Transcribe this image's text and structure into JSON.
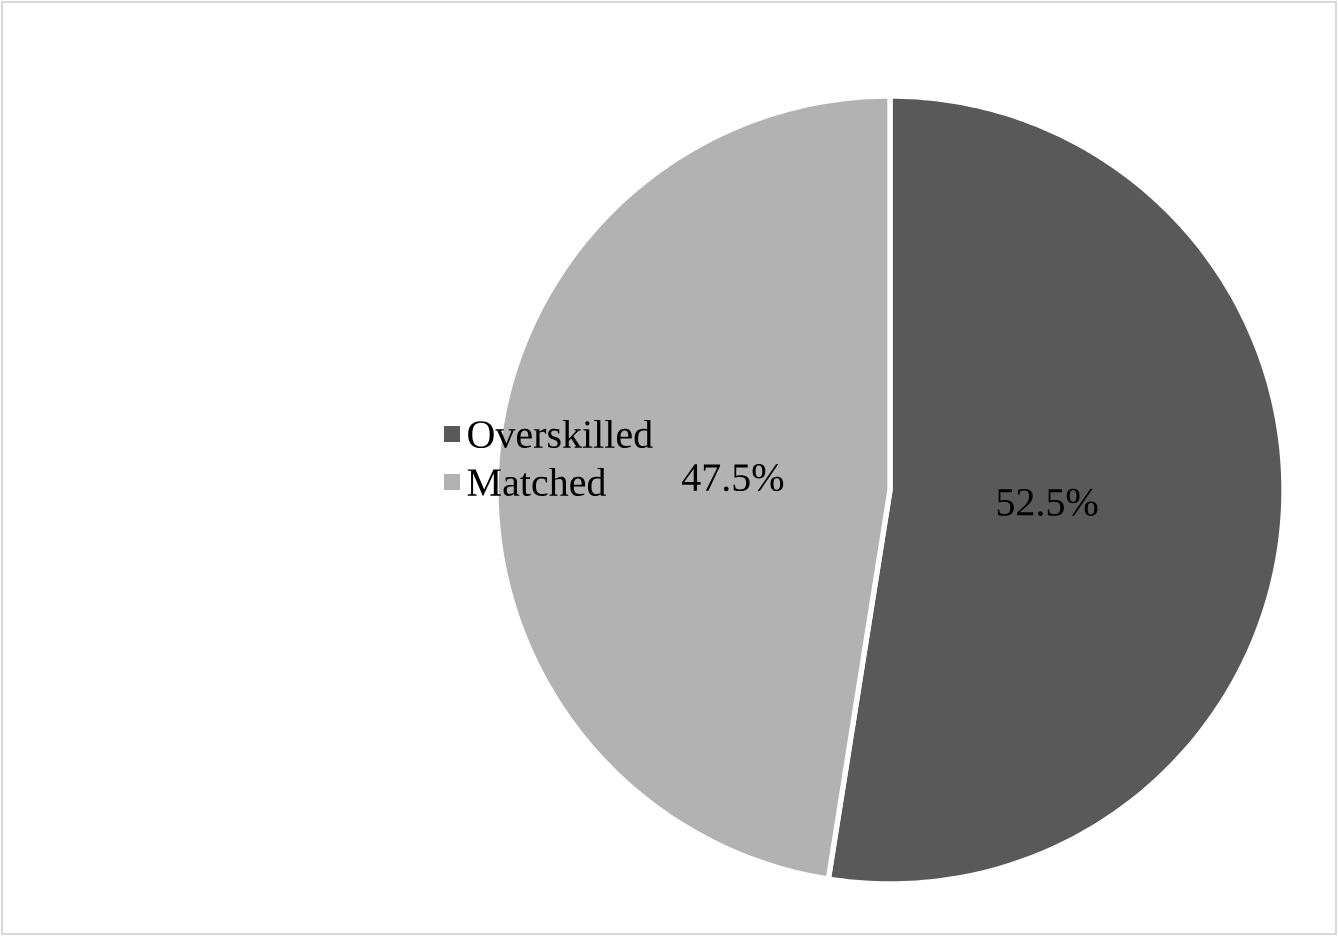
{
  "chart_data": {
    "type": "pie",
    "categories": [
      "Overskilled",
      "Matched"
    ],
    "values": [
      52.5,
      47.5
    ],
    "colors": [
      "#595959",
      "#b2b2b2"
    ],
    "value_labels": [
      "52.5%",
      "47.5%"
    ],
    "legend": "left"
  }
}
